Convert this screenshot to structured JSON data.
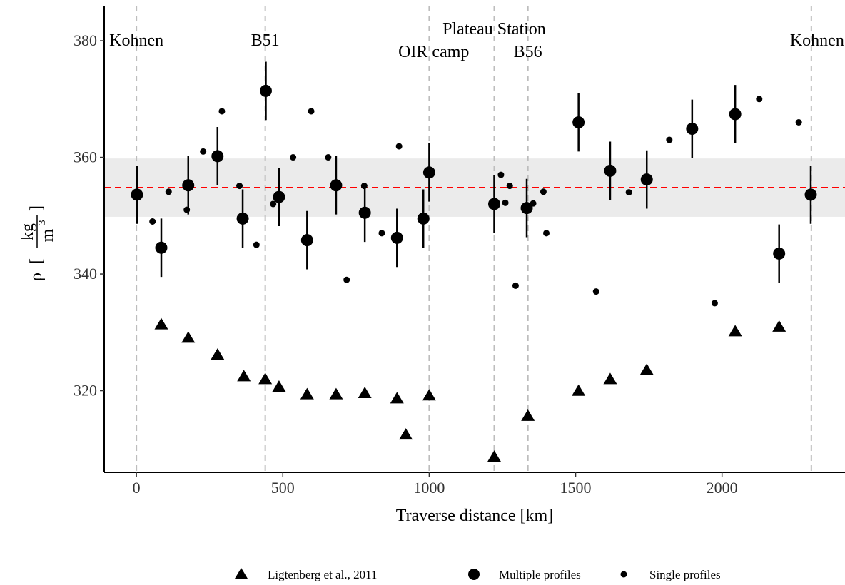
{
  "chart_data": {
    "type": "scatter",
    "title": "",
    "xlabel": "Traverse distance [km]",
    "ylabel": {
      "rho": "ρ",
      "bracket_open": "[",
      "bracket_close": "]",
      "numerator": "kg",
      "denominator": "m",
      "exponent": "3"
    },
    "xlim": [
      -110,
      2420
    ],
    "ylim": [
      306,
      386
    ],
    "x_ticks": [
      0,
      500,
      1000,
      1500,
      2000
    ],
    "y_ticks": [
      320,
      340,
      360,
      380
    ],
    "mean_line": {
      "y": 354.8,
      "color": "#ff0000",
      "style": "dashed"
    },
    "band": {
      "ymin": 349.8,
      "ymax": 359.8,
      "color": "#ebebeb"
    },
    "sites": [
      {
        "name": "Kohnen",
        "x": 0
      },
      {
        "name": "B51",
        "x": 440
      },
      {
        "name": "OIR camp",
        "x": 1000
      },
      {
        "name": "Plateau Station",
        "x": 1222
      },
      {
        "name": "B56",
        "x": 1337
      },
      {
        "name": "Kohnen",
        "x": 2305
      }
    ],
    "series": [
      {
        "name": "Ligtenberg et al., 2011",
        "marker": "triangle",
        "points": [
          {
            "x": 85,
            "y": 331.3
          },
          {
            "x": 177,
            "y": 329.0
          },
          {
            "x": 277,
            "y": 326.1
          },
          {
            "x": 367,
            "y": 322.4
          },
          {
            "x": 440,
            "y": 321.9
          },
          {
            "x": 487,
            "y": 320.6
          },
          {
            "x": 583,
            "y": 319.3
          },
          {
            "x": 682,
            "y": 319.3
          },
          {
            "x": 780,
            "y": 319.5
          },
          {
            "x": 890,
            "y": 318.6
          },
          {
            "x": 920,
            "y": 312.4
          },
          {
            "x": 1000,
            "y": 319.1
          },
          {
            "x": 1222,
            "y": 308.6
          },
          {
            "x": 1337,
            "y": 315.6
          },
          {
            "x": 1510,
            "y": 319.9
          },
          {
            "x": 1618,
            "y": 321.9
          },
          {
            "x": 1743,
            "y": 323.5
          },
          {
            "x": 2045,
            "y": 330.1
          },
          {
            "x": 2195,
            "y": 330.9
          }
        ]
      },
      {
        "name": "Multiple profiles",
        "marker": "large-circle",
        "points": [
          {
            "x": 2,
            "y": 353.6,
            "err": 5.0
          },
          {
            "x": 85,
            "y": 344.5,
            "err": 5.0
          },
          {
            "x": 177,
            "y": 355.2,
            "err": 5.0
          },
          {
            "x": 277,
            "y": 360.2,
            "err": 5.0
          },
          {
            "x": 363,
            "y": 349.5,
            "err": 5.0
          },
          {
            "x": 442,
            "y": 371.4,
            "err": 5.0
          },
          {
            "x": 487,
            "y": 353.2,
            "err": 5.0
          },
          {
            "x": 583,
            "y": 345.8,
            "err": 5.0
          },
          {
            "x": 682,
            "y": 355.2,
            "err": 5.0
          },
          {
            "x": 780,
            "y": 350.5,
            "err": 5.0
          },
          {
            "x": 890,
            "y": 346.2,
            "err": 5.0
          },
          {
            "x": 980,
            "y": 349.5,
            "err": 5.0
          },
          {
            "x": 1000,
            "y": 357.4,
            "err": 5.0
          },
          {
            "x": 1222,
            "y": 352.0,
            "err": 5.0
          },
          {
            "x": 1333,
            "y": 351.3,
            "err": 5.0
          },
          {
            "x": 1510,
            "y": 366.0,
            "err": 5.0
          },
          {
            "x": 1618,
            "y": 357.7,
            "err": 5.0
          },
          {
            "x": 1743,
            "y": 356.2,
            "err": 5.0
          },
          {
            "x": 1898,
            "y": 364.9,
            "err": 5.0
          },
          {
            "x": 2045,
            "y": 367.4,
            "err": 5.0
          },
          {
            "x": 2195,
            "y": 343.5,
            "err": 5.0
          },
          {
            "x": 2303,
            "y": 353.6,
            "err": 5.0
          }
        ]
      },
      {
        "name": "Single profiles",
        "marker": "small-circle",
        "points": [
          {
            "x": 55,
            "y": 349.0
          },
          {
            "x": 110,
            "y": 354.1
          },
          {
            "x": 172,
            "y": 351.0
          },
          {
            "x": 228,
            "y": 361.0
          },
          {
            "x": 292,
            "y": 367.9
          },
          {
            "x": 352,
            "y": 355.1
          },
          {
            "x": 410,
            "y": 345.0
          },
          {
            "x": 467,
            "y": 352.0
          },
          {
            "x": 535,
            "y": 360.0
          },
          {
            "x": 597,
            "y": 367.9
          },
          {
            "x": 655,
            "y": 360.0
          },
          {
            "x": 718,
            "y": 339.0
          },
          {
            "x": 778,
            "y": 355.1
          },
          {
            "x": 838,
            "y": 347.0
          },
          {
            "x": 897,
            "y": 361.9
          },
          {
            "x": 1245,
            "y": 357.0
          },
          {
            "x": 1260,
            "y": 352.2
          },
          {
            "x": 1275,
            "y": 355.1
          },
          {
            "x": 1295,
            "y": 338.0
          },
          {
            "x": 1355,
            "y": 352.1
          },
          {
            "x": 1390,
            "y": 354.1
          },
          {
            "x": 1400,
            "y": 347.0
          },
          {
            "x": 1570,
            "y": 337.0
          },
          {
            "x": 1682,
            "y": 354.0
          },
          {
            "x": 1820,
            "y": 363.0
          },
          {
            "x": 1975,
            "y": 335.0
          },
          {
            "x": 2127,
            "y": 370.0
          },
          {
            "x": 2262,
            "y": 366.0
          }
        ]
      }
    ],
    "legend": {
      "position": "bottom"
    }
  }
}
